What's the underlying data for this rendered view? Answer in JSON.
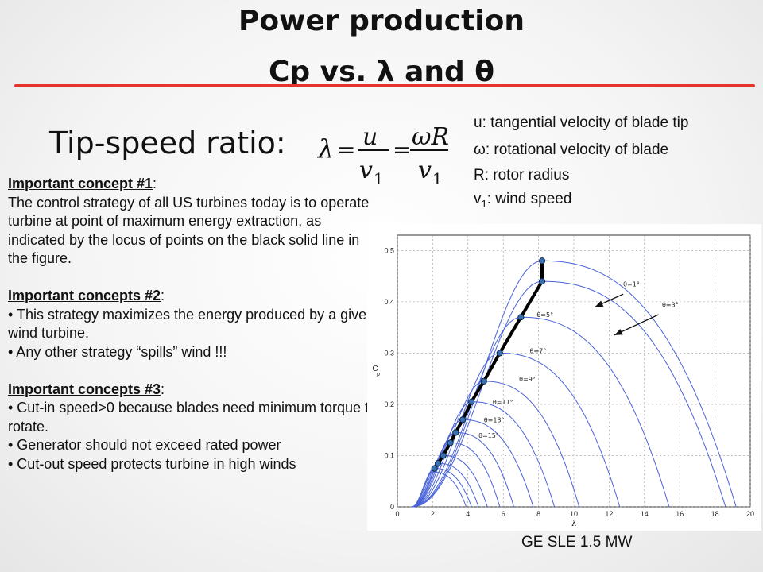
{
  "title": {
    "line1": "Power production",
    "line2": "Cp vs. λ and θ"
  },
  "tip_speed_label": "Tip-speed ratio:",
  "formula": {
    "lhs": "λ",
    "eq": "=",
    "u": "u",
    "v": "v",
    "sub1": "1",
    "omegaR": "ωR"
  },
  "definitions": {
    "u": "u: tangential velocity of blade tip",
    "omega": "ω: rotational velocity of blade",
    "R": "R: rotor radius",
    "v1_prefix": "v",
    "v1_sub": "1",
    "v1_rest": ": wind speed"
  },
  "concepts": {
    "c1_head": "Important concept #1",
    "c1_colon": ":",
    "c1_body": "The control strategy of all US turbines today is to operate turbine at point of maximum energy extraction, as indicated by the locus of points on the black solid line in the figure.",
    "c2_head": "Important concepts #2",
    "c2_colon": ":",
    "c2_b1": "• This strategy maximizes the energy produced by a given wind turbine.",
    "c2_b2": "• Any other strategy “spills” wind !!!",
    "c3_head": "Important concepts #3",
    "c3_colon": ":",
    "c3_b1": "• Cut-in speed>0 because blades need minimum torque to rotate.",
    "c3_b2": "• Generator should not exceed rated power",
    "c3_b3": "• Cut-out speed protects turbine in high winds"
  },
  "caption": "GE SLE 1.5 MW",
  "colors": {
    "red_rule": "#e8322d",
    "curve": "#4a63d8",
    "locus": "#000000",
    "marker": "#3a6fb0"
  },
  "chart_data": {
    "type": "line",
    "xlabel": "λ",
    "ylabel": "C_p",
    "xlim": [
      0,
      20
    ],
    "ylim": [
      0,
      0.53
    ],
    "xticks": [
      "0",
      "2",
      "4",
      "6",
      "8",
      "10",
      "12",
      "14",
      "16",
      "18",
      "20"
    ],
    "yticks": [
      "0",
      "0.1",
      "0.2",
      "0.3",
      "0.4",
      "0.5"
    ],
    "grid": true,
    "series": [
      {
        "lam_peak": 8.2,
        "cp_peak": 0.48,
        "lam_end": 19.2
      },
      {
        "lam_peak": 8.2,
        "cp_peak": 0.44,
        "lam_end": 18.6
      },
      {
        "lam_peak": 7.0,
        "cp_peak": 0.37,
        "lam_end": 15.4
      },
      {
        "lam_peak": 5.8,
        "cp_peak": 0.3,
        "lam_end": 12.6
      },
      {
        "lam_peak": 4.9,
        "cp_peak": 0.245,
        "lam_end": 10.3
      },
      {
        "lam_peak": 4.2,
        "cp_peak": 0.205,
        "lam_end": 8.9
      },
      {
        "lam_peak": 3.7,
        "cp_peak": 0.17,
        "lam_end": 7.7
      },
      {
        "lam_peak": 3.3,
        "cp_peak": 0.145,
        "lam_end": 6.6
      },
      {
        "lam_peak": 3.0,
        "cp_peak": 0.125,
        "lam_end": 5.8
      },
      {
        "lam_peak": 2.6,
        "cp_peak": 0.1,
        "lam_end": 5.1
      },
      {
        "lam_peak": 2.3,
        "cp_peak": 0.085,
        "lam_end": 4.6
      },
      {
        "lam_peak": 2.1,
        "cp_peak": 0.075,
        "lam_end": 4.2
      },
      {
        "lam_peak": 2.0,
        "cp_peak": 0.068,
        "lam_end": 3.9
      }
    ],
    "curve_labels": [
      {
        "text": "θ=1°",
        "x": 12.8,
        "y": 0.43
      },
      {
        "text": "θ=3°",
        "x": 15.0,
        "y": 0.39
      },
      {
        "text": "θ=5°",
        "x": 7.9,
        "y": 0.37
      },
      {
        "text": "θ=7°",
        "x": 7.5,
        "y": 0.3
      },
      {
        "text": "θ=9°",
        "x": 6.9,
        "y": 0.245
      },
      {
        "text": "θ=11°",
        "x": 5.4,
        "y": 0.2
      },
      {
        "text": "θ=13°",
        "x": 4.9,
        "y": 0.165
      },
      {
        "text": "θ=15°",
        "x": 4.6,
        "y": 0.135
      }
    ],
    "locus": [
      [
        2.1,
        0.075
      ],
      [
        2.3,
        0.085
      ],
      [
        2.6,
        0.1
      ],
      [
        3.0,
        0.125
      ],
      [
        3.3,
        0.145
      ],
      [
        3.7,
        0.17
      ],
      [
        4.2,
        0.205
      ],
      [
        4.9,
        0.245
      ],
      [
        5.8,
        0.3
      ],
      [
        7.0,
        0.37
      ],
      [
        8.2,
        0.44
      ],
      [
        8.2,
        0.48
      ]
    ],
    "arrows": [
      {
        "from": [
          12.8,
          0.415
        ],
        "to": [
          11.2,
          0.39
        ]
      },
      {
        "from": [
          14.8,
          0.375
        ],
        "to": [
          12.3,
          0.335
        ]
      }
    ]
  }
}
